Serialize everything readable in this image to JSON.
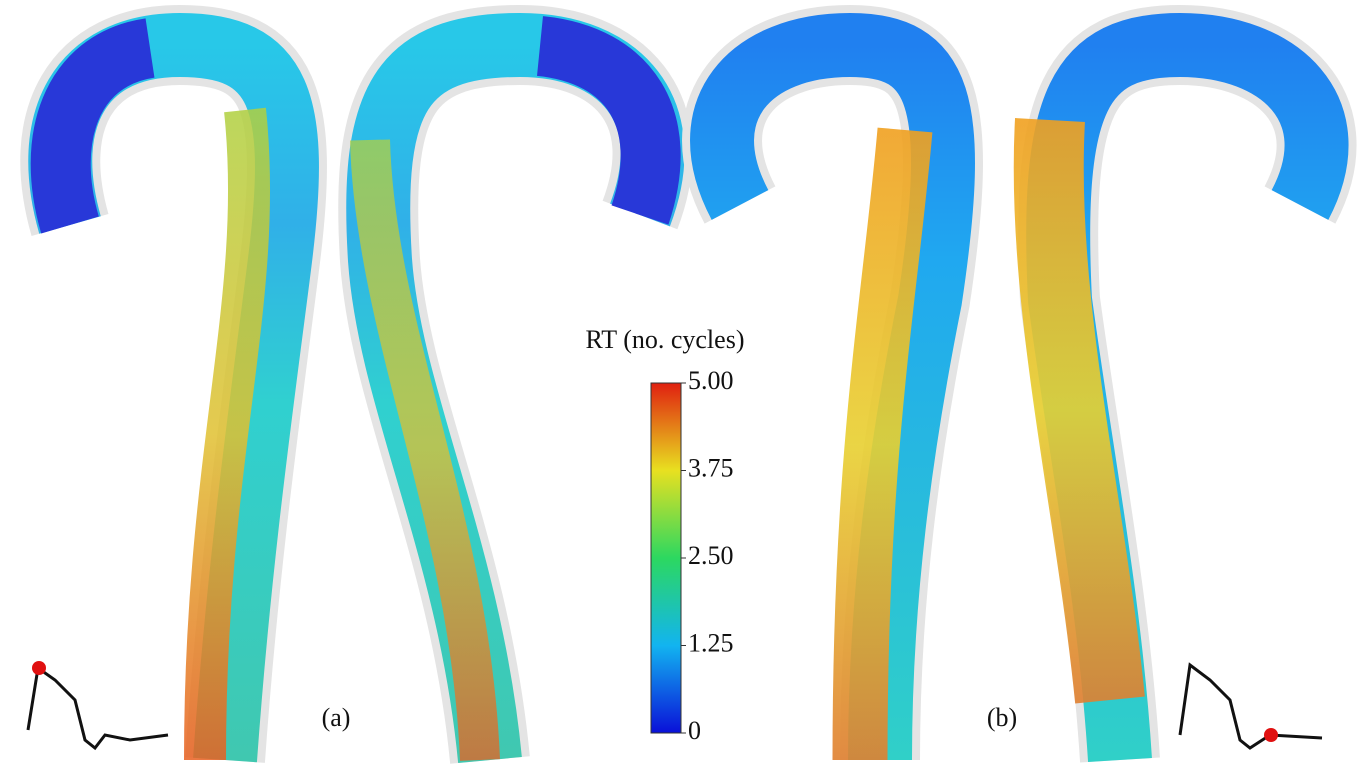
{
  "colorbar": {
    "title": "RT (no. cycles)",
    "range": [
      0,
      5
    ],
    "ticks": [
      {
        "value": 5,
        "label": "5.00"
      },
      {
        "value": 3.75,
        "label": "3.75"
      },
      {
        "value": 2.5,
        "label": "2.50"
      },
      {
        "value": 1.25,
        "label": "1.25"
      },
      0
    ]
  },
  "panels": [
    {
      "label": "(a)"
    },
    {
      "label": "(b)"
    }
  ]
}
